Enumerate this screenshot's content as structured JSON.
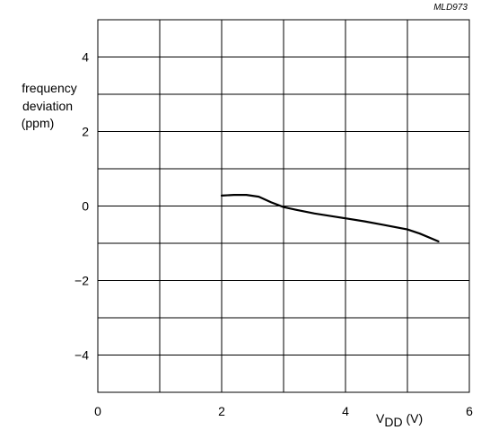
{
  "figure_code": "MLD973",
  "chart_data": {
    "type": "line",
    "title": "",
    "ylabel_lines": [
      "frequency",
      "deviation",
      "(ppm)"
    ],
    "xlabel_main": "V",
    "xlabel_sub": "DD",
    "xlabel_unit": " (V)",
    "xlim": [
      0,
      6
    ],
    "ylim": [
      -5,
      5
    ],
    "x_grid_step": 1,
    "y_grid_step": 1,
    "x_ticks": [
      {
        "value": 0,
        "label": "0"
      },
      {
        "value": 2,
        "label": "2"
      },
      {
        "value": 4,
        "label": "4"
      },
      {
        "value": 6,
        "label": "6"
      }
    ],
    "y_ticks": [
      {
        "value": 4,
        "label": "4"
      },
      {
        "value": 2,
        "label": "2"
      },
      {
        "value": 0,
        "label": "0"
      },
      {
        "value": -2,
        "label": "−2"
      },
      {
        "value": -4,
        "label": "−4"
      }
    ],
    "grid": true,
    "series": [
      {
        "x": [
          2.0,
          2.2,
          2.4,
          2.6,
          2.8,
          3.0,
          3.2,
          3.5,
          3.8,
          4.0,
          4.3,
          4.6,
          5.0,
          5.2,
          5.5
        ],
        "y": [
          0.28,
          0.3,
          0.3,
          0.25,
          0.1,
          -0.03,
          -0.1,
          -0.2,
          -0.28,
          -0.33,
          -0.41,
          -0.5,
          -0.63,
          -0.74,
          -0.95
        ]
      }
    ]
  }
}
